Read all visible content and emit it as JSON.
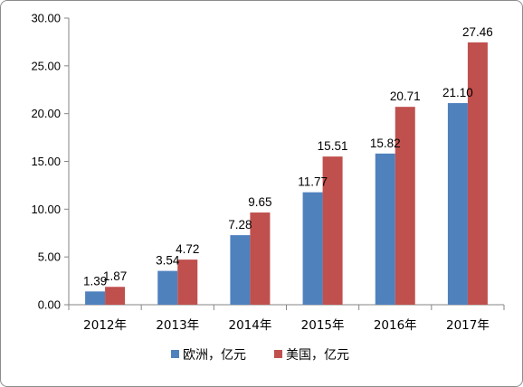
{
  "chart_data": {
    "type": "bar",
    "title": "",
    "xlabel": "",
    "ylabel": "",
    "categories": [
      "2012年",
      "2013年",
      "2014年",
      "2015年",
      "2016年",
      "2017年"
    ],
    "series": [
      {
        "name": "欧洲，亿元",
        "color": "#4f81bd",
        "values": [
          1.39,
          3.54,
          7.28,
          11.77,
          15.82,
          21.1
        ],
        "labels": [
          "1.39",
          "3.54",
          "7.28",
          "11.77",
          "15.82",
          "21.10"
        ]
      },
      {
        "name": "美国，亿元",
        "color": "#c0504d",
        "values": [
          1.87,
          4.72,
          9.65,
          15.51,
          20.71,
          27.46
        ],
        "labels": [
          "1.87",
          "4.72",
          "9.65",
          "15.51",
          "20.71",
          "27.46"
        ]
      }
    ],
    "ylim": [
      0,
      30
    ],
    "yticks": [
      "0.00",
      "5.00",
      "10.00",
      "15.00",
      "20.00",
      "25.00",
      "30.00"
    ],
    "ytick_values": [
      0,
      5,
      10,
      15,
      20,
      25,
      30
    ],
    "grid": false,
    "legend_position": "bottom"
  }
}
